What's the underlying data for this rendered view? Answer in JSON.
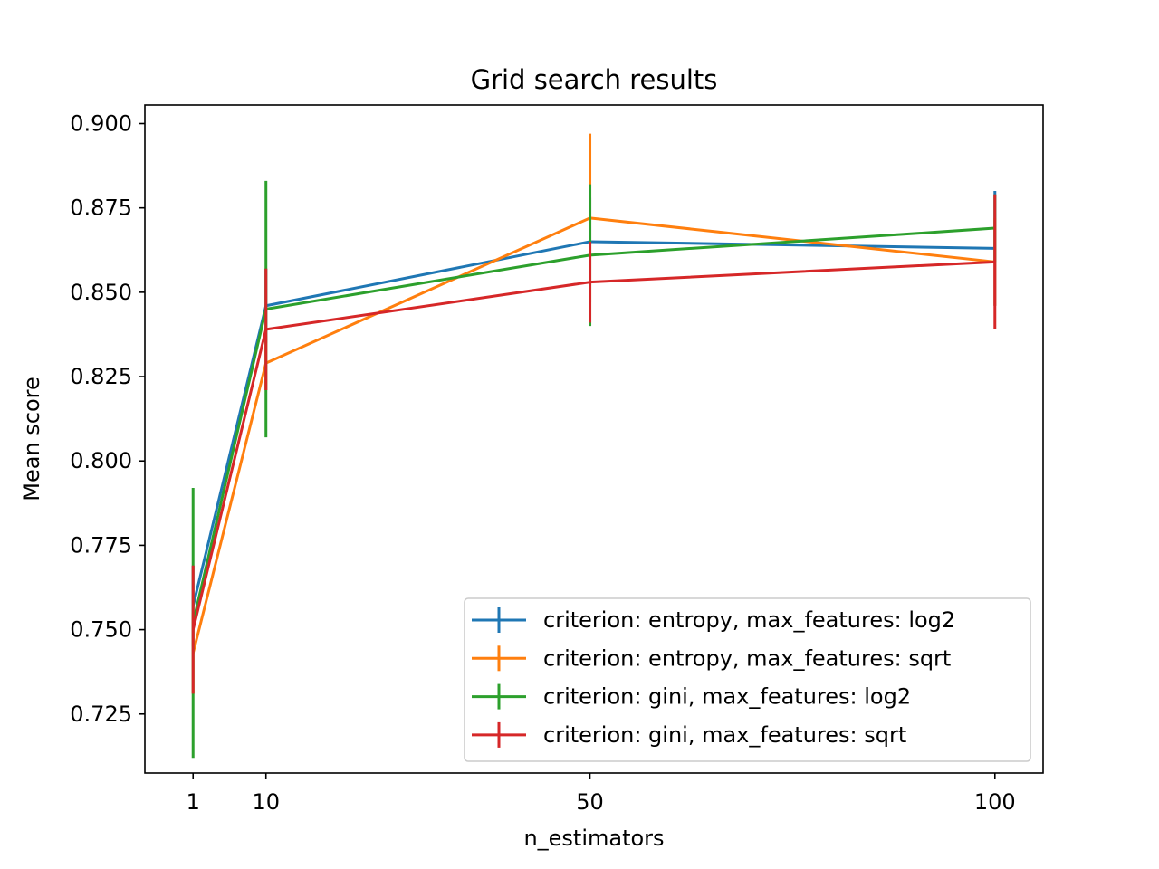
{
  "chart_data": {
    "type": "line",
    "title": "Grid search results",
    "xlabel": "n_estimators",
    "ylabel": "Mean score",
    "xlim": [
      -4.95,
      105.95
    ],
    "ylim": [
      0.7075,
      0.9055
    ],
    "xticks": [
      1,
      10,
      50,
      100
    ],
    "xtick_labels": [
      "1",
      "10",
      "50",
      "100"
    ],
    "yticks": [
      0.725,
      0.75,
      0.775,
      0.8,
      0.825,
      0.85,
      0.875,
      0.9
    ],
    "ytick_labels": [
      "0.725",
      "0.750",
      "0.775",
      "0.800",
      "0.825",
      "0.850",
      "0.875",
      "0.900"
    ],
    "grid": false,
    "legend_position": "lower-right",
    "x": [
      1,
      10,
      50,
      100
    ],
    "series": [
      {
        "name": "criterion: entropy, max_features: log2",
        "color": "#1f77b4",
        "values": [
          0.757,
          0.846,
          0.865,
          0.863
        ],
        "errors": [
          0.012,
          0.011,
          0.013,
          0.017
        ]
      },
      {
        "name": "criterion: entropy, max_features: sqrt",
        "color": "#ff7f0e",
        "values": [
          0.743,
          0.829,
          0.872,
          0.859
        ],
        "errors": [
          0.012,
          0.008,
          0.025,
          0.013
        ]
      },
      {
        "name": "criterion: gini, max_features: log2",
        "color": "#2ca02c",
        "values": [
          0.752,
          0.845,
          0.861,
          0.869
        ],
        "errors": [
          0.04,
          0.038,
          0.021,
          0.01
        ]
      },
      {
        "name": "criterion: gini, max_features: sqrt",
        "color": "#d62728",
        "values": [
          0.75,
          0.839,
          0.853,
          0.859
        ],
        "errors": [
          0.019,
          0.018,
          0.012,
          0.02
        ]
      }
    ]
  }
}
